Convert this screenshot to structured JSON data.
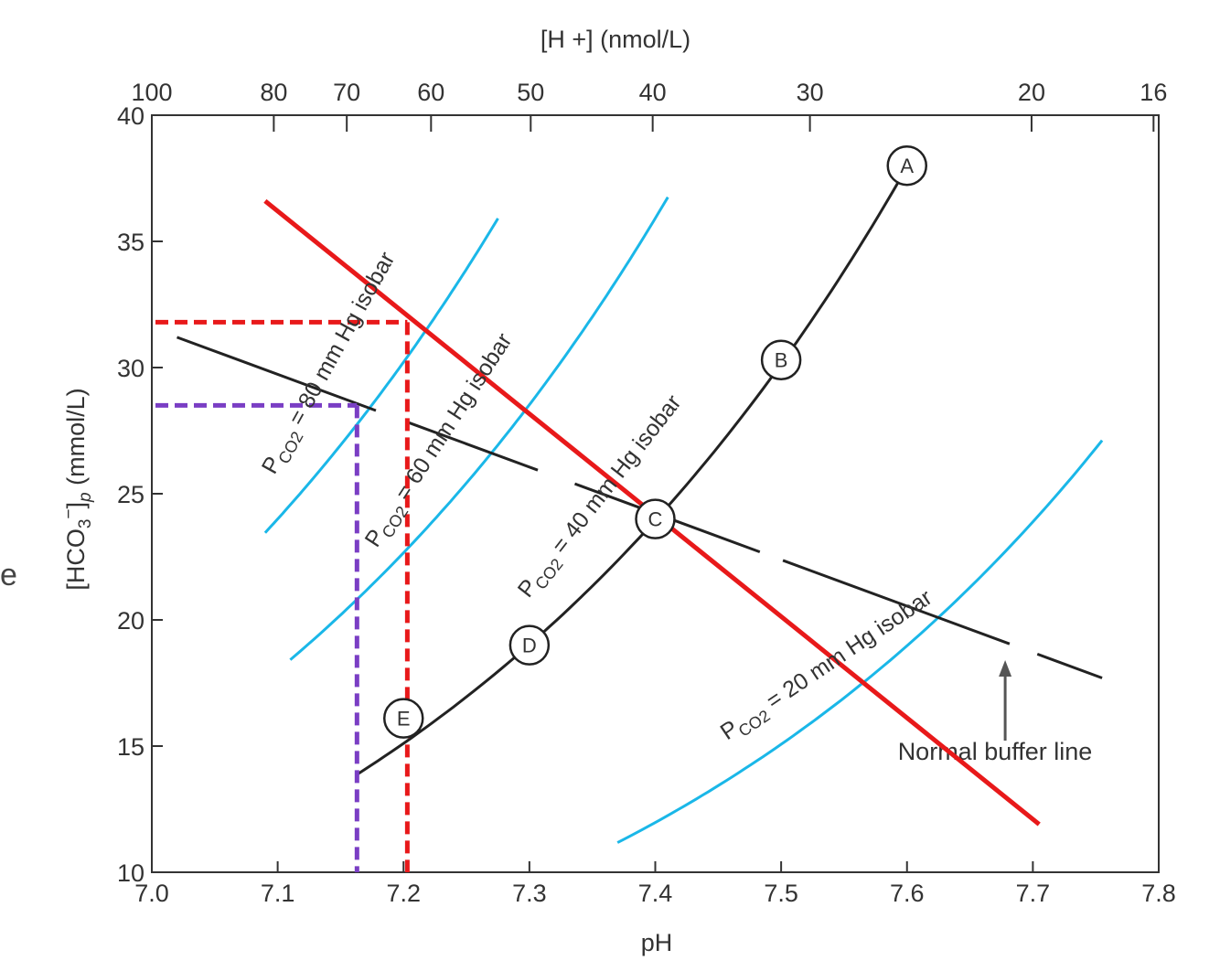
{
  "chart_data": {
    "type": "line",
    "title": "",
    "xlabel": "pH",
    "ylabel": "[HCO3−]p (mmol/L)",
    "top_axis_label": "[H +] (nmol/L)",
    "xlim": [
      7.0,
      7.8
    ],
    "ylim": [
      10,
      40
    ],
    "grid": false,
    "x_ticks": [
      "7.0",
      "7.1",
      "7.2",
      "7.3",
      "7.4",
      "7.5",
      "7.6",
      "7.7",
      "7.8"
    ],
    "y_ticks": [
      "10",
      "15",
      "20",
      "25",
      "30",
      "35",
      "40"
    ],
    "top_ticks": [
      {
        "label": "100",
        "h": 100
      },
      {
        "label": "80",
        "h": 80
      },
      {
        "label": "70",
        "h": 70
      },
      {
        "label": "60",
        "h": 60
      },
      {
        "label": "50",
        "h": 50
      },
      {
        "label": "40",
        "h": 40
      },
      {
        "label": "30",
        "h": 30
      },
      {
        "label": "20",
        "h": 20
      },
      {
        "label": "16",
        "h": 16
      }
    ],
    "isobars": [
      {
        "name": "PCO2 = 80 mm Hg isobar",
        "pco2": 80,
        "label_prefix": "P",
        "label_sub": "CO2",
        "label_suffix": " = 80 mm Hg isobar",
        "color": "#1ab7e8",
        "ph_range": [
          7.09,
          7.275
        ]
      },
      {
        "name": "PCO2 = 60 mm Hg isobar",
        "pco2": 60,
        "label_prefix": "P",
        "label_sub": "CO2",
        "label_suffix": " = 60 mm Hg isobar",
        "color": "#1ab7e8",
        "ph_range": [
          7.11,
          7.41
        ]
      },
      {
        "name": "PCO2 = 40 mm Hg isobar",
        "pco2": 40,
        "label_prefix": "P",
        "label_sub": "CO2",
        "label_suffix": " = 40 mm Hg isobar",
        "color": "#222222",
        "ph_range": [
          7.163,
          7.6
        ]
      },
      {
        "name": "PCO2 = 20 mm Hg isobar",
        "pco2": 20,
        "label_prefix": "P",
        "label_sub": "CO2",
        "label_suffix": " = 20 mm Hg isobar",
        "color": "#1ab7e8",
        "ph_range": [
          7.37,
          7.755
        ]
      }
    ],
    "points": [
      {
        "label": "A",
        "ph": 7.6,
        "hco3": 38.0
      },
      {
        "label": "B",
        "ph": 7.5,
        "hco3": 30.3
      },
      {
        "label": "C",
        "ph": 7.4,
        "hco3": 24.0
      },
      {
        "label": "D",
        "ph": 7.3,
        "hco3": 19.0
      },
      {
        "label": "E",
        "ph": 7.2,
        "hco3": 16.1
      }
    ],
    "normal_buffer_line": {
      "label": "Normal buffer line",
      "from": {
        "ph": 7.02,
        "hco3": 31.2
      },
      "to": {
        "ph": 7.755,
        "hco3": 17.7
      },
      "color": "#222222"
    },
    "red_line": {
      "from": {
        "ph": 7.09,
        "hco3": 36.6
      },
      "to": {
        "ph": 7.705,
        "hco3": 11.9
      },
      "color": "#e8191a"
    },
    "dashed_guides": [
      {
        "color": "#e8191a",
        "ph": 7.203,
        "hco3": 31.8
      },
      {
        "color": "#7a3ec4",
        "ph": 7.163,
        "hco3": 28.5
      }
    ],
    "edge_glyph": "e"
  }
}
